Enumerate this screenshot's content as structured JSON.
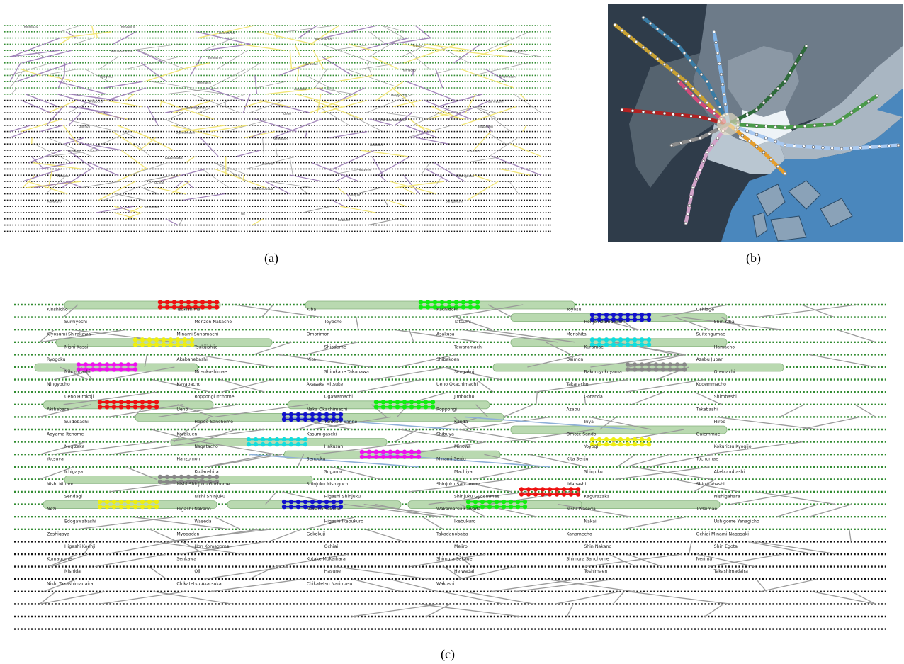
{
  "captions": {
    "a": "(a)",
    "b": "(b)",
    "c": "(c)"
  },
  "colors": {
    "dot_green": "#2f8a2f",
    "dot_black": "#111111",
    "edge_yellow": "#f2e46a",
    "edge_purple": "#9a7ab5",
    "edge_gray": "#9a9a9a",
    "highlight": "#b9d9b0",
    "map_sea": "#4a87bd",
    "map_dark": "#2f3c4a"
  },
  "panel_a_labels": [
    "Kinshicho",
    "Kiyosumi",
    "Tsukishima",
    "Kayabacho",
    "Toyosu",
    "Nishi Kasai",
    "Mitsukoshimae",
    "Shiodome",
    "Kuramae",
    "Hamacho",
    "Nihombashi",
    "Ryogoku",
    "Otemachi",
    "Akasaka",
    "Ningyocho",
    "Sumiyoshi",
    "Jimbocho",
    "Suitengumae",
    "Ueno",
    "Monzen Nakacho",
    "Shibakoen",
    "Daimon",
    "Ogawamachi",
    "Shimbashi",
    "Hakusan",
    "Iidabashi",
    "Waseda",
    "Kagurazaka",
    "Nerima",
    "Wakoshi",
    "Hikarigaoka",
    "Nakano",
    "Ochiai",
    "Takadanobaba",
    "Shinjuku",
    "Sangubashi",
    "Ikebukuro",
    "Toshimaen",
    "Oji",
    "Itabashi"
  ],
  "panel_c": {
    "top_labels": [
      {
        "text": "Kinshicho"
      },
      {
        "text": "Tsukishima"
      },
      {
        "text": "Kiba"
      },
      {
        "text": "Kachidoki"
      },
      {
        "text": "Toyosu"
      },
      {
        "text": "Oshiage"
      },
      {
        "text": "Sumiyoshi"
      },
      {
        "text": "Monzen Nakacho"
      },
      {
        "text": "Toyocho"
      },
      {
        "text": "Tatsumi"
      },
      {
        "text": "Honjo Azumabashi"
      },
      {
        "text": "Shin Kiba"
      },
      {
        "text": "Kiyosumi Shirakawa"
      },
      {
        "text": "Minami Sunamachi"
      },
      {
        "text": "Omorimon"
      },
      {
        "text": "Asakusa"
      },
      {
        "text": "Morishita"
      },
      {
        "text": "Suitengumae"
      },
      {
        "text": "Nishi Kasai"
      },
      {
        "text": "Tsukijishijo"
      },
      {
        "text": "Shiodome"
      },
      {
        "text": "Tawaramachi"
      },
      {
        "text": "Kuramae"
      },
      {
        "text": "Hamacho"
      },
      {
        "text": "Ryogoku"
      },
      {
        "text": "Akabanebashi"
      },
      {
        "text": "Mita"
      },
      {
        "text": "Shibakoen"
      },
      {
        "text": "Daimon"
      },
      {
        "text": "Azabu Juban"
      },
      {
        "text": "Nihombashi"
      },
      {
        "text": "Mitsukoshimae"
      },
      {
        "text": "Shirokane Takanawa"
      },
      {
        "text": "Sengakuji"
      },
      {
        "text": "Bakuroyokoyama"
      },
      {
        "text": "Otemachi"
      },
      {
        "text": "Ningyocho"
      },
      {
        "text": "Kayabacho"
      },
      {
        "text": "Akasaka Mitsuke"
      },
      {
        "text": "Ueno Okachimachi"
      },
      {
        "text": "Takaracho"
      },
      {
        "text": "Kodemmacho"
      },
      {
        "text": "Ueno Hirokoji"
      },
      {
        "text": "Roppongi Itchome"
      },
      {
        "text": "Ogawamachi"
      },
      {
        "text": "Jimbocho"
      },
      {
        "text": "Gotanda"
      },
      {
        "text": "Shimbashi"
      },
      {
        "text": "Akihabara"
      },
      {
        "text": "Ueno"
      },
      {
        "text": "Naka Okachimachi"
      },
      {
        "text": "Roppongi"
      },
      {
        "text": "Azabu"
      },
      {
        "text": "Takebashi"
      },
      {
        "text": "Suidobashi"
      },
      {
        "text": "Hongo Sanchome"
      },
      {
        "text": "Tameike Sanno"
      },
      {
        "text": "Kanda"
      },
      {
        "text": "Iriya"
      },
      {
        "text": "Hiroo"
      },
      {
        "text": "Aoyama Itchome"
      },
      {
        "text": "Korakuen"
      },
      {
        "text": "Kasumigaseki"
      },
      {
        "text": "Shibuya"
      },
      {
        "text": "Omote Sando"
      },
      {
        "text": "Gaiemmae"
      },
      {
        "text": "Nogizaka"
      },
      {
        "text": "Nagatacho"
      },
      {
        "text": "Hakusan"
      },
      {
        "text": "Minowa"
      },
      {
        "text": "Yoyogi"
      },
      {
        "text": "Kokuritsu Kyogijo"
      },
      {
        "text": "Yotsuya"
      },
      {
        "text": "Hanzomon"
      },
      {
        "text": "Sengoku"
      },
      {
        "text": "Minami Senju"
      },
      {
        "text": "Kita Senju"
      },
      {
        "text": "Tochomae"
      },
      {
        "text": "Ichigaya"
      },
      {
        "text": "Kudanshita"
      },
      {
        "text": "Sugamo"
      },
      {
        "text": "Machiya"
      },
      {
        "text": "Shinjuku"
      },
      {
        "text": "Akebonobashi"
      },
      {
        "text": "Nishi Nippori"
      },
      {
        "text": "Nishi Shinjuku Gochome"
      },
      {
        "text": "Shinjuku Nishiguchi"
      },
      {
        "text": "Shinjuku Sanchome"
      },
      {
        "text": "Iidabashi"
      },
      {
        "text": "Shin Itabashi"
      },
      {
        "text": "Sendagi"
      },
      {
        "text": "Nishi Shinjuku"
      },
      {
        "text": "Higashi Shinjuku"
      },
      {
        "text": "Shinjuku Gyoemmae"
      },
      {
        "text": "Kagurazaka"
      },
      {
        "text": "Nishigahara"
      },
      {
        "text": "Nezu"
      },
      {
        "text": "Higashi Nakano"
      },
      {
        "text": "Nakano Sakaue"
      },
      {
        "text": "Wakamatsu Kawada"
      },
      {
        "text": "Nishi Waseda"
      },
      {
        "text": "Todaimae"
      },
      {
        "text": "Edogawabashi"
      },
      {
        "text": "Waseda"
      },
      {
        "text": "Higashi Ikebukuro"
      },
      {
        "text": "Ikebukuro"
      },
      {
        "text": "Nakai"
      },
      {
        "text": "Ushigome Yanagicho"
      },
      {
        "text": "Zoshigaya"
      },
      {
        "text": "Myogadani"
      },
      {
        "text": "Gokokuji"
      },
      {
        "text": "Takadanobaba"
      },
      {
        "text": "Kanamecho"
      },
      {
        "text": "Ochiai Minami Nagasaki"
      },
      {
        "text": "Higashi Koenji"
      },
      {
        "text": "Hon Komagome"
      },
      {
        "text": "Ochiai"
      },
      {
        "text": "Mejiro"
      },
      {
        "text": "Shin Nakano"
      },
      {
        "text": "Shin Egota"
      },
      {
        "text": "Komagome"
      },
      {
        "text": "Senkawa"
      },
      {
        "text": "Kotake Mukaihara"
      },
      {
        "text": "Shimura Sakaue"
      },
      {
        "text": "Shimura Sanchome"
      },
      {
        "text": "Nerima"
      },
      {
        "text": "Nishidai"
      },
      {
        "text": "Oji"
      },
      {
        "text": "Hasune"
      },
      {
        "text": "Heiwadai"
      },
      {
        "text": "Toshimaen"
      },
      {
        "text": "Takashimadaira"
      },
      {
        "text": "Nishi Takashimadaira"
      },
      {
        "text": "Chikatetsu Akatsuka"
      },
      {
        "text": "Chikatetsu Narimasu"
      },
      {
        "text": "Wakoshi"
      }
    ]
  }
}
